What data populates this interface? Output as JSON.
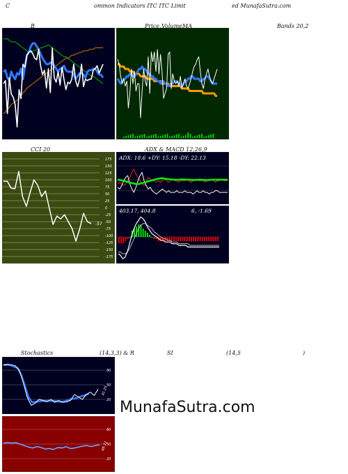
{
  "header": {
    "left_letter": "C",
    "title": "ommon  Indicators ITC ITC Limit",
    "site": "ed MunafaSutra.com"
  },
  "panel_labels": {
    "bollinger": "B",
    "price_ma_1": "Price,",
    "price_ma_2": "Volume,",
    "price_ma_3": "MA",
    "bands": "Bands 20,2",
    "cci": "CCI 20",
    "adx_macd": "ADX  & MACD 12,26,9",
    "stoch_1": "Stochastics",
    "stoch_2": "(14,3,3) & R",
    "rsi_1": "SI",
    "rsi_2": "(14,5",
    "rsi_3": ")"
  },
  "adx_text": "ADX: 18.6   +DY: 15.18  -DY: 22.13",
  "macd_text_1": "403.17,  404.8",
  "macd_text_2": "6,  -1.69",
  "cci_last_label": "-57",
  "stoch_last_label": "41.25",
  "rsi_last_label": "49.32",
  "watermark": "MunafaSutra.com",
  "colors": {
    "navy_bg": "#000020",
    "green_bg": "#002800",
    "olive_bg": "#3a4a10",
    "red_bg": "#880000",
    "white_line": "#ffffff",
    "blue_line": "#3377ff",
    "orange_line": "#cc7a00",
    "green_line": "#00bb00",
    "bright_green": "#00ee00"
  },
  "chart_data": [
    {
      "type": "line",
      "name": "bollinger",
      "series": [
        {
          "values": [
            210,
            212,
            190,
            214,
            203,
            201,
            196,
            181,
            206,
            200,
            223,
            221,
            229,
            231,
            232,
            230,
            227,
            226,
            233,
            222,
            216,
            219,
            207,
            220,
            204,
            234,
            214,
            211,
            218,
            209,
            221,
            213,
            206,
            211,
            210,
            213,
            223,
            212,
            208,
            213,
            223,
            208,
            213,
            212,
            213,
            213,
            219,
            220,
            222,
            217,
            220,
            223
          ]
        },
        {
          "values": [
            218,
            219,
            214,
            212,
            218,
            215,
            213,
            217,
            216,
            220,
            213,
            221,
            229,
            231,
            235,
            237,
            237,
            235,
            233,
            230,
            227,
            225,
            223,
            223,
            224,
            224,
            222,
            220,
            218,
            220,
            220,
            222,
            219,
            218,
            218,
            218,
            216,
            213,
            215,
            217,
            217,
            216,
            214,
            218,
            219,
            219,
            220,
            220,
            218,
            216,
            216,
            214
          ]
        },
        {
          "values": [
            240,
            240,
            240,
            239,
            238,
            238,
            238,
            237,
            236,
            235,
            234,
            233,
            232,
            231,
            231,
            232,
            232,
            233,
            233,
            234,
            234,
            235,
            235,
            236,
            235,
            234,
            233,
            232,
            231,
            230,
            229,
            228,
            228,
            227,
            226,
            225,
            224,
            223,
            222,
            221,
            220,
            219,
            218,
            217,
            216,
            215,
            215,
            214,
            213,
            212,
            211,
            210
          ]
        },
        {
          "values": [
            190,
            191,
            193,
            194,
            196,
            197,
            198,
            199,
            200,
            202,
            204,
            205,
            207,
            208,
            209,
            210,
            211,
            212,
            213,
            214,
            215,
            216,
            217,
            218,
            219,
            220,
            221,
            222,
            223,
            224,
            225,
            226,
            227,
            227,
            228,
            229,
            229,
            230,
            230,
            231,
            231,
            232,
            232,
            232,
            233,
            233,
            233,
            234,
            234,
            234,
            234,
            234
          ]
        }
      ]
    },
    {
      "type": "line",
      "name": "price_ma",
      "series": [
        {
          "values": [
            180,
            178,
            173,
            170,
            172,
            169,
            171,
            160,
            166,
            176,
            170,
            175,
            167,
            170,
            170,
            156,
            167,
            176,
            171,
            169,
            181,
            166,
            183,
            179,
            183,
            175,
            184,
            174,
            182,
            175,
            164,
            166,
            168,
            182,
            183,
            168,
            174,
            171,
            170,
            171,
            169,
            173,
            168,
            170,
            172,
            169,
            168,
            170,
            172,
            175,
            177,
            178,
            180,
            181,
            175,
            170,
            168,
            172,
            174,
            176,
            173,
            171,
            170,
            172,
            174,
            176
          ]
        },
        {
          "values": [
            172,
            171,
            170,
            171,
            172,
            172,
            173,
            173,
            174,
            174,
            173,
            173,
            174,
            175,
            176,
            176,
            177,
            176,
            176,
            175,
            174,
            174,
            173,
            173,
            172,
            172,
            171,
            171,
            170,
            171,
            171,
            170,
            170,
            169,
            169,
            170,
            170,
            171,
            171,
            171,
            170,
            170,
            169,
            170,
            171,
            171,
            172,
            172,
            173,
            173,
            172,
            172,
            172,
            172,
            171,
            171,
            172,
            172,
            173,
            173,
            172,
            171,
            170,
            170,
            170,
            170
          ]
        },
        {
          "values": [
            178,
            178,
            177,
            177,
            177,
            176,
            176,
            176,
            175,
            175,
            175,
            174,
            174,
            174,
            174,
            173,
            173,
            173,
            173,
            172,
            172,
            172,
            172,
            172,
            171,
            171,
            171,
            171,
            171,
            170,
            170,
            170,
            170,
            170,
            169,
            169,
            169,
            169,
            169,
            169,
            169,
            169,
            168,
            168,
            168,
            168,
            168,
            167,
            167,
            167,
            167,
            167,
            167,
            167,
            167,
            167,
            166,
            166,
            166,
            166,
            166,
            166,
            166,
            166,
            165,
            165
          ]
        }
      ],
      "volume": [
        0,
        0,
        0,
        0,
        0,
        0,
        0,
        0,
        0,
        0,
        0,
        0,
        0,
        0,
        0,
        0,
        0,
        0,
        0,
        0,
        0,
        0,
        0,
        0,
        0,
        0,
        0,
        0,
        0,
        0,
        0,
        0,
        0,
        0,
        0,
        0,
        0,
        0,
        0,
        0,
        0,
        0,
        0,
        0,
        0,
        0,
        0,
        0,
        0,
        0,
        0,
        0,
        0,
        0,
        0,
        0,
        0,
        0,
        0,
        0,
        0,
        0,
        0,
        0,
        0,
        0
      ]
    },
    {
      "type": "line",
      "name": "cci",
      "ylim": [
        -175,
        175
      ],
      "ticks": [
        175,
        150,
        125,
        100,
        75,
        50,
        25,
        0,
        -25,
        -50,
        -75,
        -100,
        -125,
        -150,
        -175
      ],
      "series": [
        {
          "values": [
            95,
            95,
            70,
            68,
            130,
            40,
            5,
            55,
            100,
            80,
            40,
            60,
            0,
            -60,
            -30,
            -40,
            -25,
            -50,
            -75,
            -120,
            -75,
            -20,
            -50,
            -57
          ]
        }
      ]
    },
    {
      "type": "line",
      "name": "adx",
      "series": [
        {
          "name": "ADX: 18.6",
          "values": [
            18.6,
            18.4,
            18.2,
            17.9,
            17.6,
            17.2,
            16.9,
            16.6,
            16.3,
            16.1,
            15.9,
            16.2,
            16.5,
            16.9,
            17.2,
            17.6,
            17.9,
            18.2,
            18.6,
            18.9,
            19.2,
            19.4,
            19.5,
            19.3,
            19.1,
            18.9,
            18.8,
            18.7,
            18.6,
            18.5,
            18.6,
            18.7,
            18.8,
            18.7,
            18.6,
            18.6,
            18.5,
            18.4,
            18.4,
            18.5,
            18.6,
            18.6,
            18.5,
            18.4,
            18.3,
            18.4,
            18.5,
            18.6,
            18.6,
            18.6,
            18.6,
            18.6,
            18.6,
            18.6,
            18.6
          ]
        },
        {
          "name": "+DY: 15.18",
          "values": [
            18,
            17,
            19,
            22,
            24,
            25,
            20,
            17,
            15,
            18,
            22,
            25,
            27,
            22,
            19,
            17,
            18,
            16,
            15,
            14,
            15,
            16,
            17,
            16,
            15,
            16,
            15,
            15,
            15,
            16,
            15,
            15,
            15,
            16,
            15,
            15,
            15,
            14,
            15,
            16,
            15,
            15,
            16,
            15,
            15,
            14,
            15,
            15,
            16,
            16,
            15,
            15,
            15,
            15,
            15
          ]
        },
        {
          "name": "-DY: 22.13",
          "values": [
            20,
            21,
            20,
            19,
            20,
            22,
            24,
            27,
            29,
            26,
            24,
            22,
            20,
            19,
            21,
            24,
            23,
            22,
            22,
            21,
            22,
            21,
            22,
            23,
            22,
            21,
            22,
            23,
            22,
            22,
            21,
            22,
            22,
            22,
            23,
            22,
            21,
            22,
            22,
            23,
            22,
            22,
            22,
            21,
            22,
            22,
            23,
            22,
            21,
            22,
            22,
            23,
            22,
            22,
            22
          ]
        }
      ]
    },
    {
      "type": "line",
      "name": "macd",
      "series": [
        {
          "values": [
            -10,
            -11,
            -13,
            -12,
            -9,
            -4,
            1,
            5,
            8,
            10,
            12,
            11,
            9,
            6,
            4,
            2,
            1,
            0,
            -1,
            -2,
            -2,
            -3,
            -3,
            -3,
            -4,
            -4,
            -4,
            -5,
            -5,
            -5,
            -5,
            -6,
            -6,
            -6,
            -6,
            -6,
            -6,
            -6,
            -6,
            -6,
            -6,
            -6,
            -6,
            -6,
            -6,
            -6
          ]
        },
        {
          "values": [
            -9,
            -9,
            -10,
            -10,
            -9,
            -7,
            -4,
            -1,
            2,
            5,
            7,
            8,
            8,
            7,
            6,
            5,
            3,
            2,
            1,
            0,
            -1,
            -1,
            -2,
            -2,
            -3,
            -3,
            -3,
            -4,
            -4,
            -4,
            -4,
            -4,
            -5,
            -5,
            -5,
            -5,
            -5,
            -5,
            -5,
            -5,
            -5,
            -5,
            -5,
            -5,
            -5,
            -5
          ]
        },
        {
          "values": [
            -3,
            -3,
            -3,
            -2,
            -1,
            0,
            3,
            4,
            5,
            6,
            6,
            4,
            3,
            2,
            1,
            0,
            -1,
            -1,
            -2,
            -2,
            -2,
            -2,
            -2,
            -2,
            -2,
            -2,
            -2,
            -2,
            -2,
            -2,
            -2,
            -2,
            -2,
            -2,
            -2,
            -2,
            -2,
            -2,
            -2,
            -2,
            -2,
            -2,
            -2,
            -2,
            -2,
            -2
          ]
        }
      ]
    },
    {
      "type": "line",
      "name": "stochastics",
      "ylim": [
        0,
        100
      ],
      "ticks": [
        80,
        50,
        20
      ],
      "series": [
        {
          "values": [
            90,
            92,
            91,
            89,
            80,
            55,
            25,
            8,
            12,
            20,
            18,
            15,
            20,
            14,
            18,
            14,
            15,
            18,
            30,
            25,
            20,
            30,
            35,
            28,
            41
          ]
        },
        {
          "values": [
            91,
            91,
            90,
            87,
            84,
            70,
            48,
            25,
            14,
            15,
            16,
            17,
            17,
            17,
            17,
            16,
            15,
            16,
            18,
            21,
            22,
            24,
            27,
            29,
            32
          ]
        }
      ]
    },
    {
      "type": "line",
      "name": "rsi",
      "ylim": [
        0,
        100
      ],
      "ticks": [
        80,
        50,
        20
      ],
      "series": [
        {
          "values": [
            52,
            53,
            52,
            53,
            50,
            47,
            44,
            42,
            45,
            43,
            40,
            41,
            39,
            43,
            42,
            45,
            41,
            42,
            44,
            46,
            47,
            45,
            47,
            49
          ]
        }
      ]
    }
  ]
}
